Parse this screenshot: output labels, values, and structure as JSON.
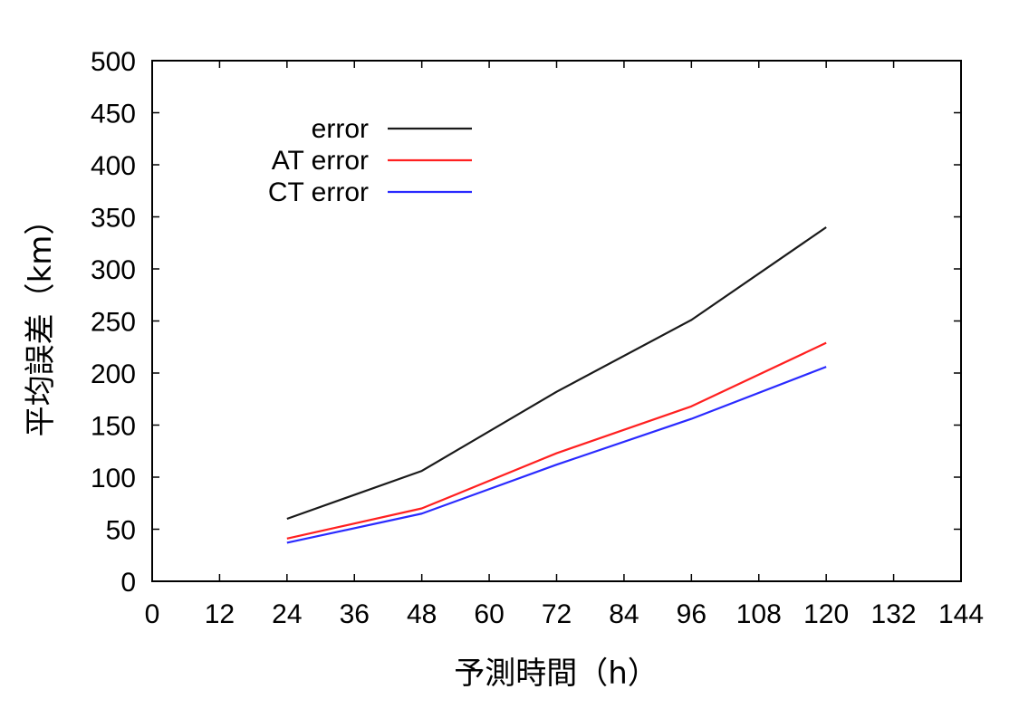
{
  "chart_data": {
    "type": "line",
    "title": "",
    "xlabel": "予測時間（h）",
    "ylabel": "平均誤差（km）",
    "xlim": [
      0,
      144
    ],
    "ylim": [
      0,
      500
    ],
    "x_ticks": [
      "0",
      "12",
      "24",
      "36",
      "48",
      "60",
      "72",
      "84",
      "96",
      "108",
      "120",
      "132",
      "144"
    ],
    "y_ticks": [
      "0",
      "50",
      "100",
      "150",
      "200",
      "250",
      "300",
      "350",
      "400",
      "450",
      "500"
    ],
    "x": [
      24,
      48,
      72,
      96,
      120
    ],
    "series": [
      {
        "name": "error",
        "color": "#1a1a1a",
        "values": [
          60,
          106,
          182,
          251,
          340
        ]
      },
      {
        "name": "AT error",
        "color": "#ff2020",
        "values": [
          41,
          70,
          123,
          168,
          229
        ]
      },
      {
        "name": "CT error",
        "color": "#2a2aff",
        "values": [
          37,
          65,
          112,
          156,
          206
        ]
      }
    ],
    "grid": false,
    "legend_position": "top-left"
  }
}
